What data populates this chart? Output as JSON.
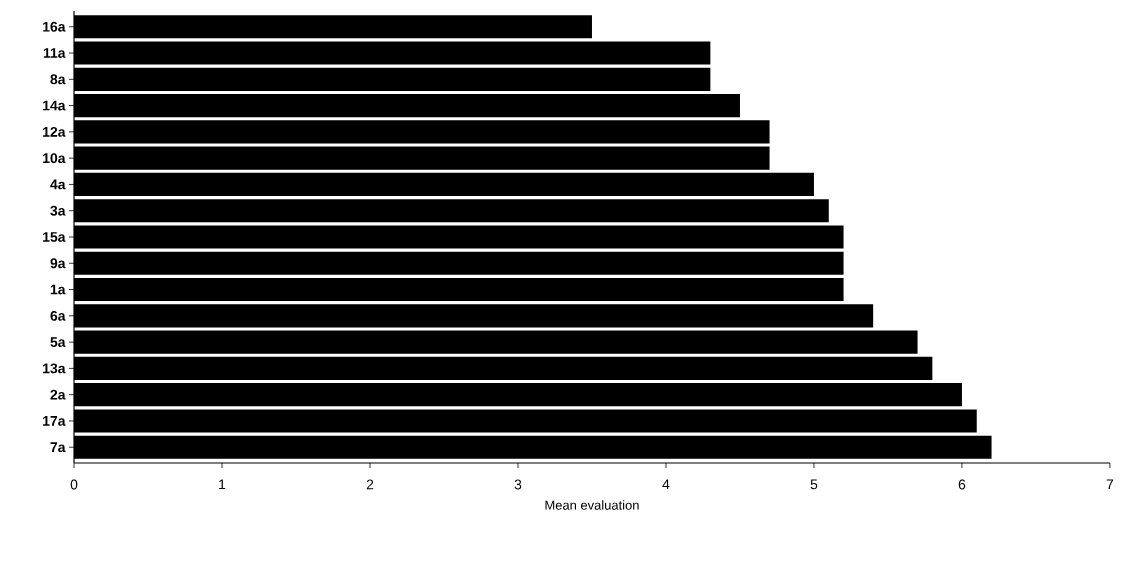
{
  "chart_data": {
    "type": "bar",
    "orientation": "horizontal",
    "xlabel": "Mean evaluation",
    "categories": [
      "16a",
      "11a",
      "8a",
      "14a",
      "12a",
      "10a",
      "4a",
      "3a",
      "15a",
      "9a",
      "1a",
      "6a",
      "5a",
      "13a",
      "2a",
      "17a",
      "7a"
    ],
    "values": [
      3.5,
      4.3,
      4.3,
      4.5,
      4.7,
      4.7,
      5.0,
      5.1,
      5.2,
      5.2,
      5.2,
      5.4,
      5.7,
      5.8,
      6.0,
      6.1,
      6.2
    ],
    "color": "#000000",
    "xlim": [
      0,
      7
    ],
    "xticks": [
      0,
      1,
      2,
      3,
      4,
      5,
      6,
      7
    ]
  }
}
